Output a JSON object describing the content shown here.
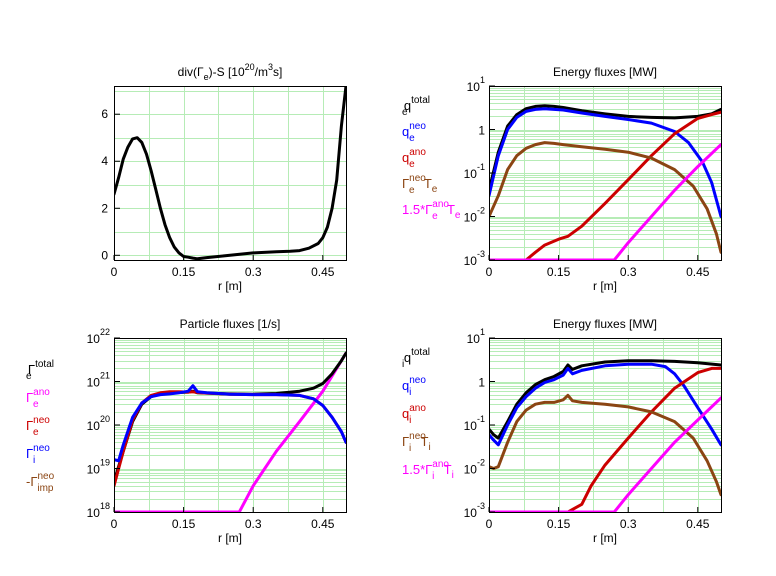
{
  "chart_data": [
    {
      "type": "line",
      "title": "div(Γe)-S  [10^20/m^3s]",
      "title_parts": {
        "a": "div(Γ",
        "b": "e",
        "c": ")-S  [10",
        "d": "20",
        "e": "/m",
        "f": "3",
        "g": "s]"
      },
      "xlabel": "r [m]",
      "xlim": [
        0,
        0.5
      ],
      "ylim": [
        -0.2,
        7.2
      ],
      "yscale": "linear",
      "xticks": [
        "0",
        "0.15",
        "0.3",
        "0.45"
      ],
      "yticks": [
        "0",
        "2",
        "4",
        "6"
      ],
      "grid": true,
      "series": [
        {
          "color": "#000000",
          "x": [
            0.0,
            0.01,
            0.02,
            0.03,
            0.04,
            0.05,
            0.06,
            0.07,
            0.08,
            0.09,
            0.1,
            0.11,
            0.12,
            0.13,
            0.14,
            0.15,
            0.16,
            0.17,
            0.18,
            0.2,
            0.25,
            0.3,
            0.35,
            0.38,
            0.4,
            0.42,
            0.44,
            0.45,
            0.46,
            0.47,
            0.48,
            0.49,
            0.5
          ],
          "y": [
            2.6,
            3.3,
            4.1,
            4.6,
            4.95,
            5.0,
            4.8,
            4.3,
            3.6,
            2.8,
            2.0,
            1.3,
            0.75,
            0.35,
            0.1,
            -0.05,
            -0.08,
            -0.12,
            -0.15,
            -0.1,
            0.0,
            0.1,
            0.15,
            0.17,
            0.2,
            0.3,
            0.5,
            0.75,
            1.2,
            2.0,
            3.2,
            5.5,
            7.2
          ]
        }
      ]
    },
    {
      "type": "line",
      "title": "Energy fluxes [MW]",
      "xlabel": "r [m]",
      "xlim": [
        0,
        0.5
      ],
      "ylim": [
        0.001,
        10
      ],
      "yscale": "log",
      "xticks": [
        "0",
        "0.15",
        "0.3",
        "0.45"
      ],
      "yticks": [
        {
          "base": "10",
          "exp": "1"
        },
        {
          "base": "1",
          "exp": ""
        },
        {
          "base": "10",
          "exp": "-1"
        },
        {
          "base": "10",
          "exp": "-2"
        },
        {
          "base": "10",
          "exp": "-3"
        }
      ],
      "grid": true,
      "legend": [
        {
          "main": "q",
          "sub": "e",
          "sup": "total",
          "color": "#000000"
        },
        {
          "main": "q",
          "sub": "e",
          "sup": "neo",
          "color": "#0000ff"
        },
        {
          "main": "q",
          "sub": "e",
          "sup": "ano",
          "color": "#cc0000"
        },
        {
          "main": "Γ",
          "sub": "e",
          "sup": "neo",
          "tail": "T",
          "tailsub": "e",
          "color": "#8b4513"
        },
        {
          "main": "1.5*Γ",
          "sub": "e",
          "sup": "ano",
          "tail": "T",
          "tailsub": "e",
          "color": "#ff00ff"
        }
      ],
      "series": [
        {
          "color": "#000000",
          "x": [
            0.0,
            0.02,
            0.04,
            0.06,
            0.08,
            0.1,
            0.12,
            0.14,
            0.16,
            0.2,
            0.25,
            0.3,
            0.35,
            0.4,
            0.45,
            0.48,
            0.5
          ],
          "y": [
            0.04,
            0.3,
            1.2,
            2.2,
            3.0,
            3.4,
            3.5,
            3.4,
            3.2,
            2.7,
            2.3,
            2.0,
            1.9,
            1.85,
            2.0,
            2.3,
            2.9
          ]
        },
        {
          "color": "#0000ff",
          "x": [
            0.0,
            0.02,
            0.04,
            0.06,
            0.08,
            0.1,
            0.12,
            0.14,
            0.16,
            0.2,
            0.25,
            0.3,
            0.35,
            0.4,
            0.43,
            0.46,
            0.48,
            0.5
          ],
          "y": [
            0.03,
            0.25,
            1.0,
            1.9,
            2.6,
            2.9,
            3.0,
            2.9,
            2.8,
            2.4,
            2.0,
            1.7,
            1.4,
            0.9,
            0.5,
            0.18,
            0.06,
            0.01
          ]
        },
        {
          "color": "#cc0000",
          "x": [
            0.0,
            0.06,
            0.08,
            0.1,
            0.12,
            0.15,
            0.17,
            0.2,
            0.25,
            0.3,
            0.35,
            0.4,
            0.45,
            0.48,
            0.5
          ],
          "y": [
            0.001,
            0.001,
            0.001,
            0.0015,
            0.0022,
            0.003,
            0.0035,
            0.006,
            0.02,
            0.07,
            0.25,
            0.8,
            1.8,
            2.2,
            2.5
          ]
        },
        {
          "color": "#8b4513",
          "x": [
            0.0,
            0.02,
            0.04,
            0.06,
            0.08,
            0.1,
            0.12,
            0.14,
            0.16,
            0.2,
            0.25,
            0.3,
            0.35,
            0.4,
            0.44,
            0.47,
            0.49,
            0.5
          ],
          "y": [
            0.01,
            0.03,
            0.12,
            0.25,
            0.37,
            0.45,
            0.5,
            0.48,
            0.45,
            0.4,
            0.35,
            0.3,
            0.22,
            0.12,
            0.05,
            0.015,
            0.004,
            0.0015
          ]
        },
        {
          "color": "#ff00ff",
          "x": [
            0.0,
            0.25,
            0.27,
            0.3,
            0.35,
            0.4,
            0.45,
            0.5
          ],
          "y": [
            0.001,
            0.001,
            0.001,
            0.0025,
            0.01,
            0.04,
            0.14,
            0.45
          ]
        }
      ]
    },
    {
      "type": "line",
      "title": "Particle fluxes [1/s]",
      "xlabel": "r [m]",
      "xlim": [
        0,
        0.5
      ],
      "ylim": [
        1e+18,
        1e+22
      ],
      "yscale": "log",
      "xticks": [
        "0",
        "0.15",
        "0.3",
        "0.45"
      ],
      "yticks": [
        {
          "base": "10",
          "exp": "22"
        },
        {
          "base": "10",
          "exp": "21"
        },
        {
          "base": "10",
          "exp": "20"
        },
        {
          "base": "10",
          "exp": "19"
        },
        {
          "base": "10",
          "exp": "18"
        }
      ],
      "grid": true,
      "legend": [
        {
          "main": "Γ",
          "sub": "e",
          "sup": "total",
          "color": "#000000"
        },
        {
          "main": "Γ",
          "sub": "e",
          "sup": "ano",
          "color": "#ff00ff"
        },
        {
          "main": "Γ",
          "sub": "e",
          "sup": "neo",
          "color": "#cc0000"
        },
        {
          "main": "Γ",
          "sub": "i",
          "sup": "neo",
          "color": "#0000ff"
        },
        {
          "main": "-Γ",
          "sub": "imp",
          "sup": "neo",
          "color": "#8b4513"
        }
      ],
      "series": [
        {
          "color": "#ff00ff",
          "x": [
            0.0,
            0.25,
            0.27,
            0.3,
            0.35,
            0.4,
            0.45,
            0.5
          ],
          "y": [
            1e+18,
            1e+18,
            1e+18,
            4e+18,
            2.5e+19,
            1.2e+20,
            6e+20,
            4.5e+21
          ]
        },
        {
          "color": "#000000",
          "x": [
            0.0,
            0.02,
            0.04,
            0.06,
            0.08,
            0.1,
            0.12,
            0.14,
            0.16,
            0.17,
            0.18,
            0.2,
            0.25,
            0.3,
            0.35,
            0.4,
            0.43,
            0.45,
            0.47,
            0.49,
            0.5
          ],
          "y": [
            5e+18,
            2.5e+19,
            1.2e+20,
            3e+20,
            4.5e+20,
            5.2e+20,
            5.5e+20,
            5.6e+20,
            5.7e+20,
            6e+20,
            5.5e+20,
            5.4e+20,
            5.2e+20,
            5.1e+20,
            5.3e+20,
            6e+20,
            7e+20,
            9e+20,
            1.5e+21,
            3e+21,
            4.5e+21
          ]
        },
        {
          "color": "#cc0000",
          "x": [
            0.0,
            0.02,
            0.04,
            0.06,
            0.08,
            0.1,
            0.12,
            0.14,
            0.16,
            0.17,
            0.18,
            0.2,
            0.25,
            0.3,
            0.35,
            0.4,
            0.43,
            0.45,
            0.47,
            0.49,
            0.5
          ],
          "y": [
            4e+18,
            2.5e+19,
            1.3e+20,
            3.2e+20,
            4.8e+20,
            5.5e+20,
            5.8e+20,
            5.8e+20,
            5.7e+20,
            5.8e+20,
            5.6e+20,
            5.4e+20,
            5.1e+20,
            5e+20,
            5e+20,
            4.8e+20,
            4e+20,
            2.8e+20,
            1.5e+20,
            7e+19,
            4e+19
          ]
        },
        {
          "color": "#0000ff",
          "x": [
            0.0,
            0.01,
            0.02,
            0.04,
            0.06,
            0.08,
            0.1,
            0.12,
            0.14,
            0.16,
            0.17,
            0.18,
            0.2,
            0.25,
            0.3,
            0.35,
            0.4,
            0.43,
            0.45,
            0.47,
            0.49,
            0.5
          ],
          "y": [
            1.6e+19,
            1.5e+19,
            3.5e+19,
            1.5e+20,
            3.2e+20,
            4.5e+20,
            5e+20,
            5.2e+20,
            5.5e+20,
            6e+20,
            8e+20,
            5.8e+20,
            5.5e+20,
            5.1e+20,
            5e+20,
            5e+20,
            4.8e+20,
            4e+20,
            2.8e+20,
            1.5e+20,
            7e+19,
            4e+19
          ]
        }
      ]
    },
    {
      "type": "line",
      "title": "Energy fluxes [MW]",
      "xlabel": "r [m]",
      "xlim": [
        0,
        0.5
      ],
      "ylim": [
        0.001,
        10
      ],
      "yscale": "log",
      "xticks": [
        "0",
        "0.15",
        "0.3",
        "0.45"
      ],
      "yticks": [
        {
          "base": "10",
          "exp": "1"
        },
        {
          "base": "1",
          "exp": ""
        },
        {
          "base": "10",
          "exp": "-1"
        },
        {
          "base": "10",
          "exp": "-2"
        },
        {
          "base": "10",
          "exp": "-3"
        }
      ],
      "grid": true,
      "legend": [
        {
          "main": "q",
          "sub": "i",
          "sup": "total",
          "color": "#000000"
        },
        {
          "main": "q",
          "sub": "i",
          "sup": "neo",
          "color": "#0000ff"
        },
        {
          "main": "q",
          "sub": "i",
          "sup": "ano",
          "color": "#cc0000"
        },
        {
          "main": "Γ",
          "sub": "i",
          "sup": "neo",
          "tail": "T",
          "tailsub": "i",
          "color": "#8b4513"
        },
        {
          "main": "1.5*Γ",
          "sub": "i",
          "sup": "ano",
          "tail": "T",
          "tailsub": "i",
          "color": "#ff00ff"
        }
      ],
      "series": [
        {
          "color": "#000000",
          "x": [
            0.0,
            0.01,
            0.02,
            0.04,
            0.06,
            0.08,
            0.1,
            0.12,
            0.14,
            0.16,
            0.17,
            0.18,
            0.2,
            0.25,
            0.3,
            0.35,
            0.4,
            0.45,
            0.5
          ],
          "y": [
            0.08,
            0.06,
            0.05,
            0.12,
            0.3,
            0.55,
            0.85,
            1.1,
            1.3,
            1.7,
            2.4,
            1.9,
            2.3,
            2.8,
            3.0,
            3.0,
            2.9,
            2.7,
            2.4
          ]
        },
        {
          "color": "#0000ff",
          "x": [
            0.0,
            0.01,
            0.02,
            0.04,
            0.06,
            0.08,
            0.1,
            0.12,
            0.14,
            0.16,
            0.17,
            0.18,
            0.2,
            0.25,
            0.3,
            0.35,
            0.38,
            0.4,
            0.42,
            0.45,
            0.48,
            0.5
          ],
          "y": [
            0.06,
            0.045,
            0.035,
            0.1,
            0.25,
            0.45,
            0.7,
            0.95,
            1.1,
            1.4,
            2.0,
            1.5,
            1.8,
            2.3,
            2.5,
            2.5,
            2.2,
            1.5,
            0.8,
            0.25,
            0.08,
            0.035
          ]
        },
        {
          "color": "#cc0000",
          "x": [
            0.0,
            0.15,
            0.17,
            0.2,
            0.22,
            0.25,
            0.3,
            0.35,
            0.4,
            0.45,
            0.48,
            0.5
          ],
          "y": [
            0.001,
            0.001,
            0.001,
            0.0015,
            0.004,
            0.012,
            0.05,
            0.2,
            0.7,
            1.6,
            2.0,
            2.0
          ]
        },
        {
          "color": "#8b4513",
          "x": [
            0.0,
            0.01,
            0.02,
            0.04,
            0.06,
            0.08,
            0.1,
            0.12,
            0.14,
            0.16,
            0.17,
            0.18,
            0.2,
            0.25,
            0.3,
            0.35,
            0.4,
            0.44,
            0.47,
            0.49,
            0.5
          ],
          "y": [
            0.011,
            0.01,
            0.011,
            0.04,
            0.12,
            0.22,
            0.3,
            0.33,
            0.33,
            0.38,
            0.48,
            0.36,
            0.33,
            0.3,
            0.26,
            0.2,
            0.12,
            0.05,
            0.015,
            0.005,
            0.0025
          ]
        },
        {
          "color": "#ff00ff",
          "x": [
            0.0,
            0.25,
            0.27,
            0.3,
            0.35,
            0.4,
            0.45,
            0.5
          ],
          "y": [
            0.001,
            0.001,
            0.001,
            0.0025,
            0.01,
            0.04,
            0.13,
            0.42
          ]
        }
      ]
    }
  ]
}
